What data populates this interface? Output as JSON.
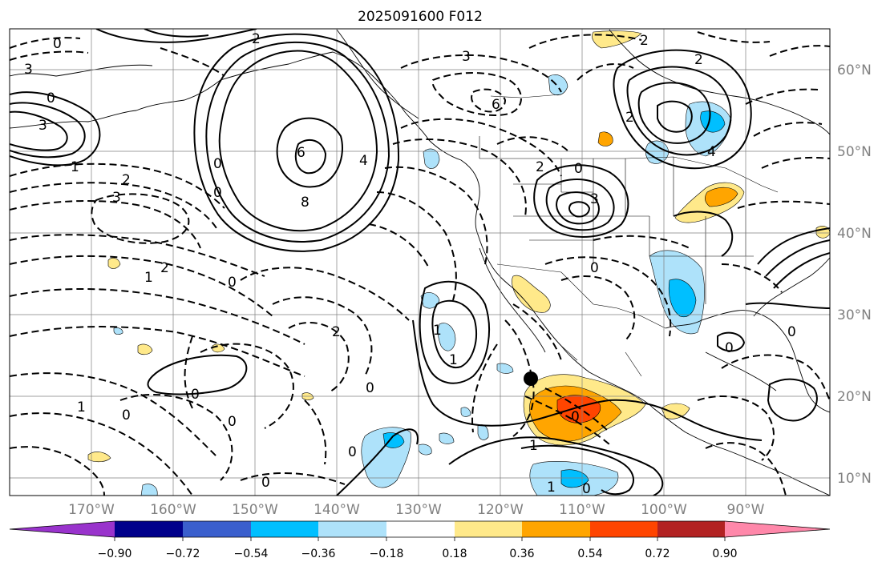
{
  "title": "2025091600 F012",
  "lat_labels": [
    "60°N",
    "50°N",
    "40°N",
    "30°N",
    "20°N",
    "10°N"
  ],
  "lon_labels": [
    "170°W",
    "160°W",
    "150°W",
    "140°W",
    "130°W",
    "120°W",
    "110°W",
    "100°W",
    "90°W"
  ],
  "colorbar": {
    "colors": [
      "#9933cc",
      "#00008b",
      "#3a5fcd",
      "#00bfff",
      "#aee2fa",
      "#ffffff",
      "#ffe98a",
      "#ffa500",
      "#ff4500",
      "#b22222",
      "#ff88aa"
    ],
    "ticks": [
      "−0.90",
      "−0.72",
      "−0.54",
      "−0.36",
      "−0.18",
      "0.18",
      "0.36",
      "0.54",
      "0.72",
      "0.90"
    ]
  },
  "contour_labels": [
    "0",
    "3",
    "3",
    "0",
    "1",
    "2",
    "6",
    "8",
    "0",
    "4",
    "2",
    "0",
    "3",
    "6",
    "2",
    "0",
    "3",
    "2",
    "2",
    "4",
    "2",
    "3",
    "1",
    "0",
    "2",
    "2",
    "1",
    "0",
    "0",
    "0",
    "0",
    "1",
    "0",
    "0",
    "0",
    "0",
    "1",
    "1",
    "0",
    "0",
    "0",
    "1"
  ]
}
